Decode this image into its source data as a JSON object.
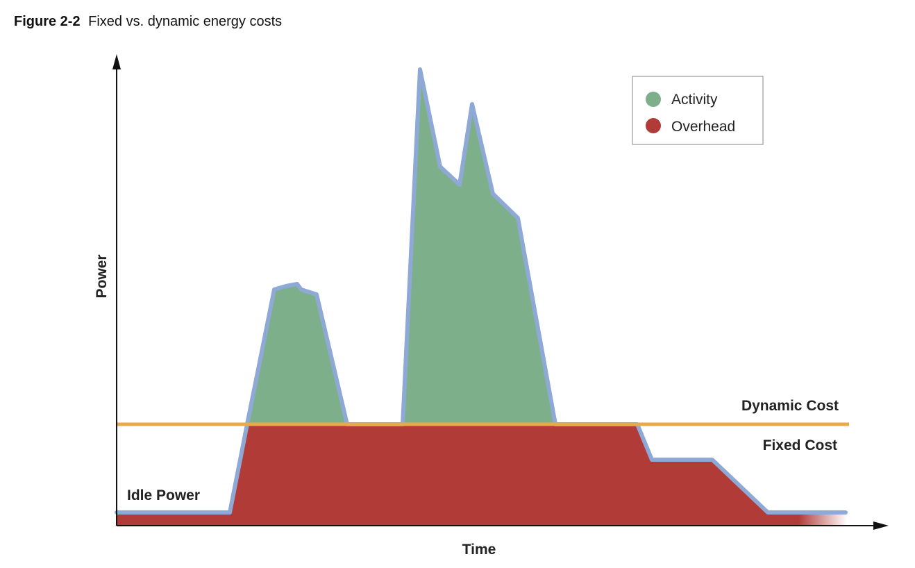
{
  "caption": {
    "figure_number": "Figure 2-2",
    "title": "Fixed vs. dynamic energy costs"
  },
  "axes": {
    "x_label": "Time",
    "y_label": "Power"
  },
  "legend": {
    "position": "top-right",
    "items": [
      {
        "label": "Activity",
        "color": "#7db08a"
      },
      {
        "label": "Overhead",
        "color": "#b03b37"
      }
    ]
  },
  "annotations": {
    "dynamic_cost": "Dynamic Cost",
    "fixed_cost": "Fixed Cost",
    "idle_power": "Idle Power"
  },
  "colors": {
    "activity": "#7db08a",
    "overhead": "#b03b37",
    "power_curve": "#8fa9d6",
    "threshold_line": "#e9a94b",
    "axis": "#111111"
  }
}
